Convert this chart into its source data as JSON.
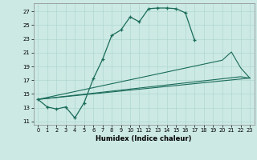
{
  "xlabel": "Humidex (Indice chaleur)",
  "xlim": [
    -0.5,
    23.5
  ],
  "ylim": [
    10.5,
    28.2
  ],
  "xticks": [
    0,
    1,
    2,
    3,
    4,
    5,
    6,
    7,
    8,
    9,
    10,
    11,
    12,
    13,
    14,
    15,
    16,
    17,
    18,
    19,
    20,
    21,
    22,
    23
  ],
  "yticks": [
    11,
    13,
    15,
    17,
    19,
    21,
    23,
    25,
    27
  ],
  "bg_color": "#cce9e4",
  "grid_color": "#b0d8d0",
  "line_color": "#1a6b5a",
  "line1_x": [
    0,
    1,
    2,
    3,
    4,
    5,
    6,
    7,
    8,
    9,
    10,
    11,
    12,
    13,
    14,
    15,
    16,
    17
  ],
  "line1_y": [
    14.2,
    13.1,
    12.8,
    13.1,
    11.5,
    13.7,
    17.2,
    20.0,
    23.5,
    24.3,
    26.2,
    25.5,
    27.4,
    27.5,
    27.5,
    27.4,
    26.8,
    22.8
  ],
  "line2_x": [
    0,
    23
  ],
  "line2_y": [
    14.2,
    17.3
  ],
  "line3_x": [
    0,
    20,
    21,
    22,
    23
  ],
  "line3_y": [
    14.2,
    19.9,
    21.1,
    18.8,
    17.3
  ],
  "line4_x": [
    0,
    22,
    23
  ],
  "line4_y": [
    14.2,
    17.5,
    17.3
  ]
}
